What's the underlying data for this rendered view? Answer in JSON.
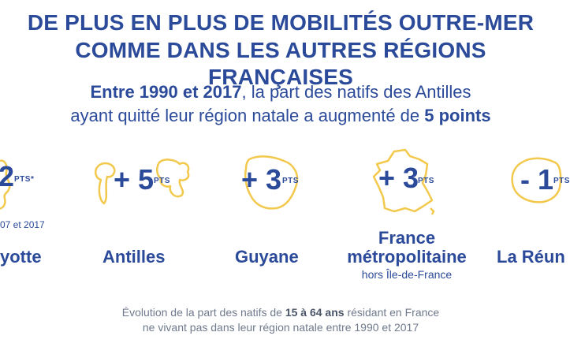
{
  "title": {
    "line1": "DE PLUS EN PLUS DE MOBILITÉS OUTRE-MER",
    "line2": "COMME DANS LES AUTRES RÉGIONS FRANÇAISES"
  },
  "subtitle": {
    "line1_bold": "Entre 1990 et 2017",
    "line1_rest": ", la part des natifs des Antilles",
    "line2_pre": "ayant quitté leur région natale a augmenté de ",
    "line2_bold": "5 points"
  },
  "regions": [
    {
      "value": "2",
      "unit": "PTS*",
      "note": "07 et 2017",
      "name": "yotte"
    },
    {
      "value": "+ 5",
      "unit": "PTS",
      "name": "Antilles"
    },
    {
      "value": "+ 3",
      "unit": "PTS",
      "name": "Guyane"
    },
    {
      "value": "+ 3",
      "unit": "PTS",
      "name_line1": "France",
      "name_line2": "métropolitaine",
      "note": "hors Île-de-France"
    },
    {
      "value": "- 1",
      "unit": "PTS",
      "name": "La Réun"
    }
  ],
  "footer": {
    "line1_pre": "Évolution de la part des natifs de ",
    "line1_bold": "15 à 64 ans",
    "line1_post": " résidant en France",
    "line2": "ne vivant pas dans leur région natale entre 1990 et 2017"
  },
  "colors": {
    "text": "#2b4a9a",
    "outline": "#f2c94c",
    "footer": "#6f7a8c"
  }
}
